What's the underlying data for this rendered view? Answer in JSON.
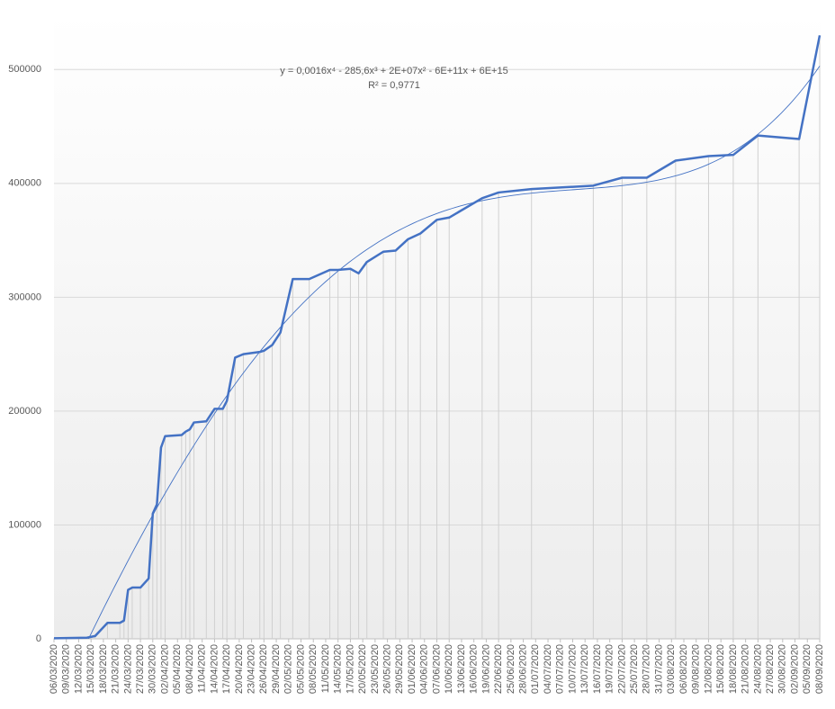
{
  "chart_data": {
    "type": "line",
    "annotations": [
      "y = 0,0016x⁴ - 285,6x³ + 2E+07x² - 6E+11x + 6E+15",
      "R² = 0,9771"
    ],
    "x": [
      "06/03/2020",
      "14/03/2020",
      "16/03/2020",
      "19/03/2020",
      "22/03/2020",
      "23/03/2020",
      "24/03/2020",
      "25/03/2020",
      "27/03/2020",
      "29/03/2020",
      "30/03/2020",
      "31/03/2020",
      "01/04/2020",
      "02/04/2020",
      "06/04/2020",
      "07/04/2020",
      "08/04/2020",
      "09/04/2020",
      "12/04/2020",
      "14/04/2020",
      "16/04/2020",
      "17/04/2020",
      "19/04/2020",
      "21/04/2020",
      "25/04/2020",
      "26/04/2020",
      "28/04/2020",
      "30/04/2020",
      "03/05/2020",
      "07/05/2020",
      "12/05/2020",
      "14/05/2020",
      "17/05/2020",
      "19/05/2020",
      "21/05/2020",
      "25/05/2020",
      "28/05/2020",
      "31/05/2020",
      "03/06/2020",
      "07/06/2020",
      "10/06/2020",
      "18/06/2020",
      "22/06/2020",
      "30/06/2020",
      "15/07/2020",
      "22/07/2020",
      "28/07/2020",
      "04/08/2020",
      "12/08/2020",
      "18/08/2020",
      "24/08/2020",
      "03/09/2020",
      "08/09/2020"
    ],
    "series": [
      {
        "color": "#4472c4",
        "values": [
          500,
          1000,
          2500,
          14000,
          14000,
          16000,
          43000,
          45000,
          45000,
          53000,
          110000,
          118000,
          168000,
          178000,
          179000,
          182000,
          184000,
          190000,
          191000,
          202000,
          202000,
          209000,
          247000,
          250000,
          252000,
          253000,
          258000,
          269000,
          316000,
          316000,
          324000,
          324000,
          325000,
          321000,
          331000,
          340000,
          341000,
          351000,
          356000,
          368000,
          370000,
          387000,
          392000,
          395000,
          398000,
          405000,
          405000,
          420000,
          424000,
          425000,
          442000,
          439000,
          530000
        ]
      }
    ],
    "trendline": {
      "type": "polynomial",
      "order": 4
    },
    "xlim": [
      "06/03/2020",
      "08/09/2020"
    ],
    "xticks": [
      "06/03/2020",
      "09/03/2020",
      "12/03/2020",
      "15/03/2020",
      "18/03/2020",
      "21/03/2020",
      "24/03/2020",
      "27/03/2020",
      "30/03/2020",
      "02/04/2020",
      "05/04/2020",
      "08/04/2020",
      "11/04/2020",
      "14/04/2020",
      "17/04/2020",
      "20/04/2020",
      "23/04/2020",
      "26/04/2020",
      "29/04/2020",
      "02/05/2020",
      "05/05/2020",
      "08/05/2020",
      "11/05/2020",
      "14/05/2020",
      "17/05/2020",
      "20/05/2020",
      "23/05/2020",
      "26/05/2020",
      "29/05/2020",
      "01/06/2020",
      "04/06/2020",
      "07/06/2020",
      "10/06/2020",
      "13/06/2020",
      "16/06/2020",
      "19/06/2020",
      "22/06/2020",
      "25/06/2020",
      "28/06/2020",
      "01/07/2020",
      "04/07/2020",
      "07/07/2020",
      "10/07/2020",
      "13/07/2020",
      "16/07/2020",
      "19/07/2020",
      "22/07/2020",
      "25/07/2020",
      "28/07/2020",
      "31/07/2020",
      "03/08/2020",
      "06/08/2020",
      "09/08/2020",
      "12/08/2020",
      "15/08/2020",
      "18/08/2020",
      "21/08/2020",
      "24/08/2020",
      "27/08/2020",
      "30/08/2020",
      "02/09/2020",
      "05/09/2020",
      "08/09/2020"
    ],
    "ylim": [
      0,
      550000
    ],
    "yticks": [
      0,
      100000,
      200000,
      300000,
      400000,
      500000
    ],
    "grid": true
  }
}
